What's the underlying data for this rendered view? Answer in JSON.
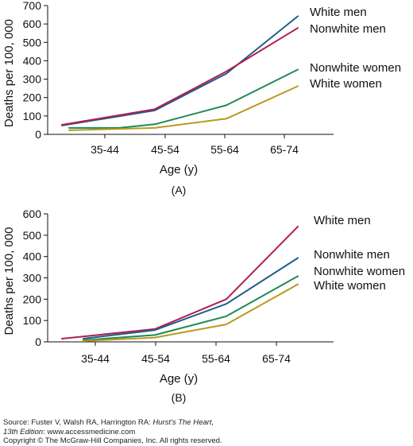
{
  "chart_data": [
    {
      "type": "line",
      "panel_label": "(A)",
      "xlabel": "Age (y)",
      "ylabel": "Deaths per 100, 000",
      "ylim": [
        0,
        700
      ],
      "yticks": [
        0,
        100,
        200,
        300,
        400,
        500,
        600,
        700
      ],
      "categories": [
        "35-44",
        "45-54",
        "55-64",
        "65-74"
      ],
      "x": [
        40,
        50,
        60,
        70
      ],
      "grid": false,
      "series": [
        {
          "name": "White men",
          "color": "#1f5f8b",
          "points": [
            [
              37,
              48
            ],
            [
              50,
              130
            ],
            [
              60,
              330
            ],
            [
              70,
              642
            ]
          ]
        },
        {
          "name": "Nonwhite men",
          "color": "#b01e4f",
          "points": [
            [
              37,
              52
            ],
            [
              50,
              137
            ],
            [
              60,
              342
            ],
            [
              70,
              578
            ]
          ]
        },
        {
          "name": "Nonwhite women",
          "color": "#1f8a55",
          "points": [
            [
              38,
              35
            ],
            [
              45,
              35
            ],
            [
              50,
              55
            ],
            [
              60,
              158
            ],
            [
              70,
              352
            ]
          ]
        },
        {
          "name": "White women",
          "color": "#b89a1e",
          "points": [
            [
              38,
              22
            ],
            [
              50,
              35
            ],
            [
              60,
              85
            ],
            [
              70,
              262
            ]
          ]
        }
      ]
    },
    {
      "type": "line",
      "panel_label": "(B)",
      "xlabel": "Age (y)",
      "ylabel": "Deaths per 100, 000",
      "ylim": [
        0,
        600
      ],
      "yticks": [
        0,
        100,
        200,
        300,
        400,
        500,
        600
      ],
      "categories": [
        "35-44",
        "45-54",
        "55-64",
        "65-74"
      ],
      "x": [
        40,
        50,
        60,
        70
      ],
      "grid": false,
      "series": [
        {
          "name": "White men",
          "color": "#b01e4f",
          "points": [
            [
              37,
              15
            ],
            [
              50,
              60
            ],
            [
              60,
              200
            ],
            [
              70,
              540
            ]
          ]
        },
        {
          "name": "Nonwhite men",
          "color": "#1f5f8b",
          "points": [
            [
              40,
              15
            ],
            [
              50,
              55
            ],
            [
              60,
              178
            ],
            [
              70,
              393
            ]
          ]
        },
        {
          "name": "Nonwhite women",
          "color": "#1f8a55",
          "points": [
            [
              40,
              8
            ],
            [
              50,
              32
            ],
            [
              60,
              120
            ],
            [
              70,
              308
            ]
          ]
        },
        {
          "name": "White women",
          "color": "#b89a1e",
          "points": [
            [
              40,
              4
            ],
            [
              50,
              20
            ],
            [
              60,
              82
            ],
            [
              70,
              270
            ]
          ]
        }
      ]
    }
  ],
  "footer": {
    "source_prefix": "Source: Fuster V, Walsh RA, Harrington RA: ",
    "source_title": "Hurst's The Heart,",
    "edition": "13th Edition",
    "site": ": www.accessmedicine.com",
    "copyright": "Copyright © The McGraw-Hill Companies, Inc. All rights reserved."
  }
}
